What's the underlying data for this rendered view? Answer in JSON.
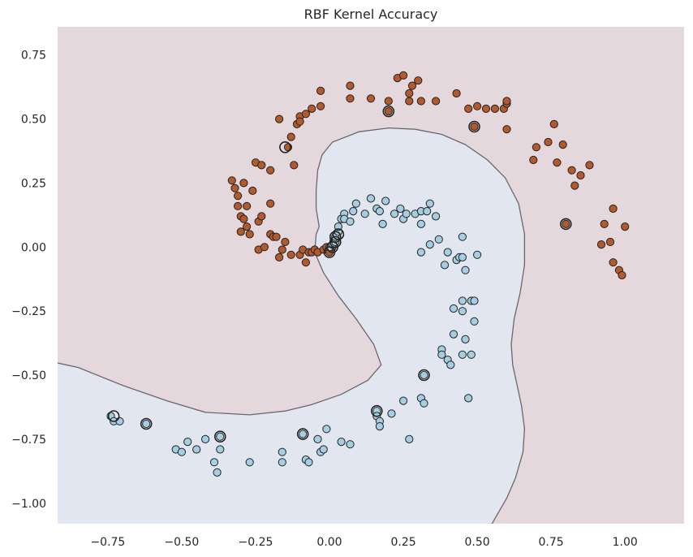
{
  "chart_data": {
    "type": "scatter",
    "title": "RBF Kernel Accuracy",
    "xlabel": "",
    "ylabel": "",
    "xlim": [
      -0.92,
      1.2
    ],
    "ylim": [
      -1.08,
      0.86
    ],
    "x_ticks": [
      "−0.75",
      "−0.50",
      "−0.25",
      "0.00",
      "0.25",
      "0.50",
      "0.75",
      "1.00"
    ],
    "x_tick_values": [
      -0.75,
      -0.5,
      -0.25,
      0.0,
      0.25,
      0.5,
      0.75,
      1.0
    ],
    "y_ticks": [
      "0.75",
      "0.50",
      "0.25",
      "0.00",
      "−0.25",
      "−0.50",
      "−0.75",
      "−1.00"
    ],
    "y_tick_values": [
      0.75,
      0.5,
      0.25,
      0.0,
      -0.25,
      -0.5,
      -0.75,
      -1.0
    ],
    "grid": false,
    "legend": "none",
    "colors": {
      "region_class0": "#e4d8dc",
      "region_class1": "#e1e6f0",
      "boundary": "#6b6670",
      "class0_point": "#b35a2d",
      "class1_point": "#a6cee3",
      "point_edge": "#222222",
      "support_vector_ring": "#222222"
    },
    "series": [
      {
        "class": 0,
        "points": [
          [
            -0.33,
            0.26
          ],
          [
            -0.32,
            0.23
          ],
          [
            -0.31,
            0.2
          ],
          [
            -0.31,
            0.16
          ],
          [
            -0.3,
            0.12
          ],
          [
            -0.3,
            0.06
          ],
          [
            -0.29,
            0.25
          ],
          [
            -0.29,
            0.11
          ],
          [
            -0.28,
            0.08
          ],
          [
            -0.28,
            0.16
          ],
          [
            -0.27,
            0.05
          ],
          [
            -0.26,
            0.22
          ],
          [
            -0.25,
            0.33
          ],
          [
            -0.24,
            0.1
          ],
          [
            -0.24,
            -0.01
          ],
          [
            -0.23,
            0.32
          ],
          [
            -0.23,
            0.12
          ],
          [
            -0.22,
            0.0
          ],
          [
            -0.2,
            0.3
          ],
          [
            -0.2,
            0.17
          ],
          [
            -0.2,
            0.05
          ],
          [
            -0.19,
            0.04
          ],
          [
            -0.18,
            0.04
          ],
          [
            -0.17,
            0.5
          ],
          [
            -0.17,
            -0.04
          ],
          [
            -0.16,
            -0.01
          ],
          [
            -0.15,
            0.02
          ],
          [
            -0.14,
            0.39
          ],
          [
            -0.13,
            0.43
          ],
          [
            -0.13,
            -0.03
          ],
          [
            -0.12,
            0.32
          ],
          [
            -0.11,
            0.48
          ],
          [
            -0.1,
            0.51
          ],
          [
            -0.1,
            0.49
          ],
          [
            -0.1,
            -0.03
          ],
          [
            -0.09,
            -0.01
          ],
          [
            -0.08,
            0.52
          ],
          [
            -0.08,
            -0.06
          ],
          [
            -0.07,
            -0.02
          ],
          [
            -0.06,
            0.54
          ],
          [
            -0.06,
            -0.02
          ],
          [
            -0.05,
            -0.01
          ],
          [
            -0.04,
            -0.02
          ],
          [
            -0.03,
            0.61
          ],
          [
            -0.03,
            0.55
          ],
          [
            -0.02,
            -0.01
          ],
          [
            -0.01,
            0.0
          ],
          [
            0.0,
            -0.02
          ],
          [
            0.01,
            0.0
          ],
          [
            0.02,
            0.03
          ],
          [
            0.07,
            0.63
          ],
          [
            0.07,
            0.58
          ],
          [
            0.14,
            0.58
          ],
          [
            0.2,
            0.57
          ],
          [
            0.2,
            0.53
          ],
          [
            0.23,
            0.66
          ],
          [
            0.25,
            0.67
          ],
          [
            0.27,
            0.6
          ],
          [
            0.27,
            0.57
          ],
          [
            0.28,
            0.63
          ],
          [
            0.3,
            0.65
          ],
          [
            0.31,
            0.57
          ],
          [
            0.36,
            0.57
          ],
          [
            0.43,
            0.6
          ],
          [
            0.47,
            0.54
          ],
          [
            0.49,
            0.47
          ],
          [
            0.5,
            0.55
          ],
          [
            0.53,
            0.54
          ],
          [
            0.56,
            0.54
          ],
          [
            0.59,
            0.54
          ],
          [
            0.6,
            0.56
          ],
          [
            0.6,
            0.46
          ],
          [
            0.6,
            0.57
          ],
          [
            0.69,
            0.34
          ],
          [
            0.7,
            0.39
          ],
          [
            0.74,
            0.41
          ],
          [
            0.76,
            0.48
          ],
          [
            0.77,
            0.33
          ],
          [
            0.79,
            0.4
          ],
          [
            0.8,
            0.09
          ],
          [
            0.82,
            0.3
          ],
          [
            0.83,
            0.24
          ],
          [
            0.85,
            0.28
          ],
          [
            0.88,
            0.32
          ],
          [
            0.92,
            0.01
          ],
          [
            0.93,
            0.09
          ],
          [
            0.95,
            0.02
          ],
          [
            0.96,
            0.15
          ],
          [
            0.96,
            -0.06
          ],
          [
            0.98,
            -0.09
          ],
          [
            0.99,
            -0.11
          ],
          [
            1.0,
            0.08
          ]
        ]
      },
      {
        "class": 1,
        "points": [
          [
            -0.74,
            -0.66
          ],
          [
            -0.73,
            -0.68
          ],
          [
            -0.71,
            -0.68
          ],
          [
            -0.62,
            -0.69
          ],
          [
            -0.52,
            -0.79
          ],
          [
            -0.5,
            -0.8
          ],
          [
            -0.48,
            -0.76
          ],
          [
            -0.45,
            -0.79
          ],
          [
            -0.42,
            -0.75
          ],
          [
            -0.39,
            -0.84
          ],
          [
            -0.38,
            -0.88
          ],
          [
            -0.37,
            -0.79
          ],
          [
            -0.37,
            -0.74
          ],
          [
            -0.27,
            -0.84
          ],
          [
            -0.16,
            -0.8
          ],
          [
            -0.16,
            -0.84
          ],
          [
            -0.09,
            -0.73
          ],
          [
            -0.08,
            -0.83
          ],
          [
            -0.07,
            -0.84
          ],
          [
            -0.04,
            -0.75
          ],
          [
            -0.03,
            -0.8
          ],
          [
            -0.02,
            -0.79
          ],
          [
            -0.01,
            -0.71
          ],
          [
            0.0,
            0.0
          ],
          [
            0.01,
            0.01
          ],
          [
            0.02,
            0.02
          ],
          [
            0.02,
            0.04
          ],
          [
            0.03,
            0.06
          ],
          [
            0.03,
            0.08
          ],
          [
            0.04,
            0.11
          ],
          [
            0.05,
            0.13
          ],
          [
            0.05,
            0.11
          ],
          [
            0.04,
            -0.76
          ],
          [
            0.07,
            0.1
          ],
          [
            0.08,
            0.14
          ],
          [
            0.09,
            0.17
          ],
          [
            0.07,
            -0.77
          ],
          [
            0.12,
            0.13
          ],
          [
            0.14,
            0.19
          ],
          [
            0.16,
            0.15
          ],
          [
            0.17,
            0.14
          ],
          [
            0.18,
            0.09
          ],
          [
            0.19,
            0.18
          ],
          [
            0.16,
            -0.64
          ],
          [
            0.16,
            -0.66
          ],
          [
            0.17,
            -0.68
          ],
          [
            0.17,
            -0.7
          ],
          [
            0.21,
            -0.65
          ],
          [
            0.22,
            0.13
          ],
          [
            0.24,
            0.15
          ],
          [
            0.25,
            0.11
          ],
          [
            0.26,
            0.13
          ],
          [
            0.25,
            -0.6
          ],
          [
            0.27,
            -0.75
          ],
          [
            0.29,
            0.13
          ],
          [
            0.31,
            0.14
          ],
          [
            0.31,
            0.09
          ],
          [
            0.31,
            -0.02
          ],
          [
            0.31,
            -0.59
          ],
          [
            0.32,
            -0.5
          ],
          [
            0.32,
            -0.61
          ],
          [
            0.33,
            0.14
          ],
          [
            0.34,
            0.17
          ],
          [
            0.34,
            0.01
          ],
          [
            0.36,
            0.12
          ],
          [
            0.37,
            0.03
          ],
          [
            0.38,
            -0.4
          ],
          [
            0.38,
            -0.42
          ],
          [
            0.39,
            -0.07
          ],
          [
            0.4,
            -0.02
          ],
          [
            0.4,
            -0.44
          ],
          [
            0.41,
            -0.46
          ],
          [
            0.42,
            -0.24
          ],
          [
            0.42,
            -0.34
          ],
          [
            0.43,
            -0.05
          ],
          [
            0.44,
            -0.04
          ],
          [
            0.45,
            -0.04
          ],
          [
            0.45,
            0.04
          ],
          [
            0.45,
            -0.21
          ],
          [
            0.45,
            -0.25
          ],
          [
            0.45,
            -0.42
          ],
          [
            0.46,
            -0.36
          ],
          [
            0.46,
            -0.09
          ],
          [
            0.47,
            -0.59
          ],
          [
            0.48,
            -0.21
          ],
          [
            0.48,
            -0.42
          ],
          [
            0.49,
            -0.21
          ],
          [
            0.49,
            -0.29
          ],
          [
            0.5,
            -0.03
          ]
        ]
      }
    ],
    "support_vectors": [
      [
        -0.73,
        -0.66
      ],
      [
        -0.62,
        -0.69
      ],
      [
        -0.37,
        -0.74
      ],
      [
        -0.09,
        -0.73
      ],
      [
        0.16,
        -0.64
      ],
      [
        0.32,
        -0.5
      ],
      [
        0.0,
        -0.02
      ],
      [
        0.01,
        0.0
      ],
      [
        0.02,
        0.02
      ],
      [
        0.02,
        0.04
      ],
      [
        0.03,
        0.05
      ],
      [
        -0.15,
        0.39
      ],
      [
        0.2,
        0.53
      ],
      [
        0.49,
        0.47
      ],
      [
        0.8,
        0.09
      ]
    ]
  }
}
